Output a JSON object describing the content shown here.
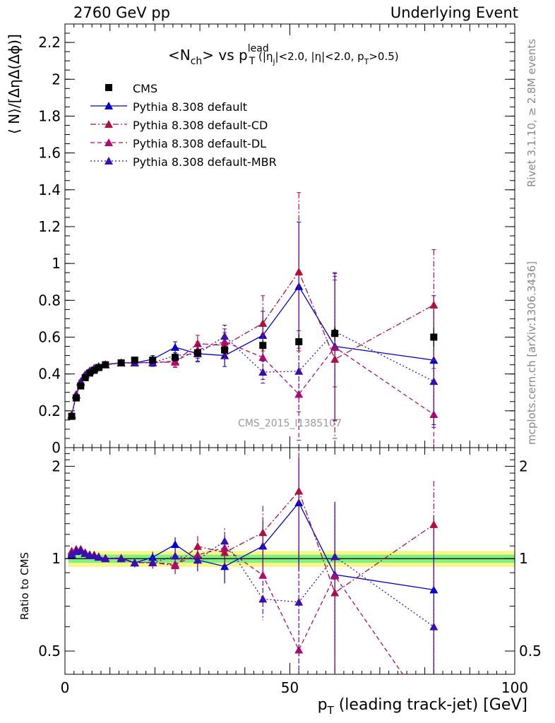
{
  "header": {
    "left": "2760 GeV pp",
    "right": "Underlying Event"
  },
  "side_text": {
    "rivet": "Rivet 3.1.10, ≥ 2.8M events",
    "mcplots": "mcplots.cern.ch [arXiv:1306.3436]"
  },
  "watermark": "CMS_2015_I1385107",
  "title": {
    "main": "<N",
    "sub_ch": "ch",
    "vs": "> vs p",
    "sup_lead": "lead",
    "sub_T": "T",
    "cuts": "(|η",
    "cuts_j": "j",
    "cuts_rest": "|<2.0, |η|<2.0, p",
    "cuts_T": "T",
    "cuts_end": ">0.5)"
  },
  "colors": {
    "cms": "#000000",
    "default": "#0000cc",
    "cd": "#b0103c",
    "dl": "#b00a6e",
    "mbr": "#3a0fb0",
    "band_inner": "#80f080",
    "band_outer": "#f6f68a"
  },
  "chart_data": {
    "type": "scatter",
    "x": [
      1.5,
      2.5,
      3.5,
      4.5,
      5.5,
      6.5,
      7.5,
      9.0,
      12.5,
      15.5,
      19.5,
      24.5,
      29.5,
      35.5,
      44.0,
      52.0,
      60.0,
      82.0
    ],
    "series": [
      {
        "name": "CMS",
        "y": [
          0.17,
          0.27,
          0.335,
          0.38,
          0.405,
          0.42,
          0.435,
          0.45,
          0.46,
          0.475,
          0.475,
          0.49,
          0.515,
          0.53,
          0.555,
          0.575,
          0.62,
          0.6
        ],
        "err": [
          0.01,
          0.012,
          0.012,
          0.012,
          0.012,
          0.012,
          0.012,
          0.012,
          0.012,
          0.015,
          0.015,
          0.02,
          0.02,
          0.025,
          0.03,
          0.04,
          0.04,
          0.05
        ]
      },
      {
        "name": "Pythia 8.308 default",
        "y": [
          0.175,
          0.285,
          0.355,
          0.395,
          0.415,
          0.43,
          0.44,
          0.45,
          0.46,
          0.46,
          0.48,
          0.545,
          0.51,
          0.5,
          0.61,
          0.875,
          0.55,
          0.475
        ],
        "err": [
          0.005,
          0.006,
          0.007,
          0.007,
          0.008,
          0.008,
          0.009,
          0.01,
          0.012,
          0.015,
          0.02,
          0.03,
          0.04,
          0.06,
          0.13,
          0.35,
          0.4,
          0.35
        ]
      },
      {
        "name": "Pythia 8.308 default-CD",
        "y": [
          0.18,
          0.29,
          0.36,
          0.398,
          0.418,
          0.432,
          0.442,
          0.452,
          0.462,
          0.462,
          0.462,
          0.465,
          0.565,
          0.555,
          0.675,
          0.955,
          0.48,
          0.775
        ],
        "err": [
          0.005,
          0.006,
          0.007,
          0.007,
          0.008,
          0.008,
          0.009,
          0.01,
          0.012,
          0.015,
          0.02,
          0.03,
          0.045,
          0.07,
          0.15,
          0.43,
          0.43,
          0.3
        ]
      },
      {
        "name": "Pythia 8.308 default-DL",
        "y": [
          0.178,
          0.288,
          0.358,
          0.396,
          0.416,
          0.431,
          0.441,
          0.451,
          0.461,
          0.461,
          0.461,
          0.47,
          0.53,
          0.575,
          0.49,
          0.29,
          0.545,
          0.18
        ],
        "err": [
          0.005,
          0.006,
          0.007,
          0.007,
          0.008,
          0.008,
          0.009,
          0.01,
          0.012,
          0.015,
          0.02,
          0.03,
          0.045,
          0.07,
          0.12,
          0.25,
          0.4,
          0.25
        ]
      },
      {
        "name": "Pythia 8.308 default-MBR",
        "y": [
          0.176,
          0.286,
          0.356,
          0.396,
          0.416,
          0.431,
          0.441,
          0.451,
          0.461,
          0.461,
          0.461,
          0.5,
          0.51,
          0.605,
          0.41,
          0.415,
          0.63,
          0.36
        ],
        "err": [
          0.005,
          0.006,
          0.007,
          0.007,
          0.008,
          0.008,
          0.009,
          0.01,
          0.012,
          0.015,
          0.02,
          0.03,
          0.045,
          0.06,
          0.06,
          0.22,
          0.3,
          0.25
        ]
      }
    ],
    "ratio_band": {
      "inner": 0.03,
      "outer": 0.06
    },
    "top_axis": {
      "ylabel": "⟨ N⟩/[ΔηΔ(Δϕ)]",
      "ylim": [
        0,
        2.3
      ],
      "ticks": [
        0,
        0.2,
        0.4,
        0.6,
        0.8,
        1,
        1.2,
        1.4,
        1.6,
        1.8,
        2,
        2.2
      ]
    },
    "bottom_axis": {
      "ylabel": "Ratio to CMS",
      "ylim": [
        0.42,
        2.3
      ],
      "scale": "log",
      "ticks": [
        0.5,
        1,
        2
      ]
    },
    "x_axis": {
      "label": "p",
      "label_sub": "T",
      "label_rest": "(leading track-jet) [GeV]",
      "xlim": [
        0,
        100
      ],
      "ticks": [
        0,
        50,
        100
      ]
    },
    "legend": [
      "CMS",
      "Pythia 8.308 default",
      "Pythia 8.308 default-CD",
      "Pythia 8.308 default-DL",
      "Pythia 8.308 default-MBR"
    ]
  }
}
